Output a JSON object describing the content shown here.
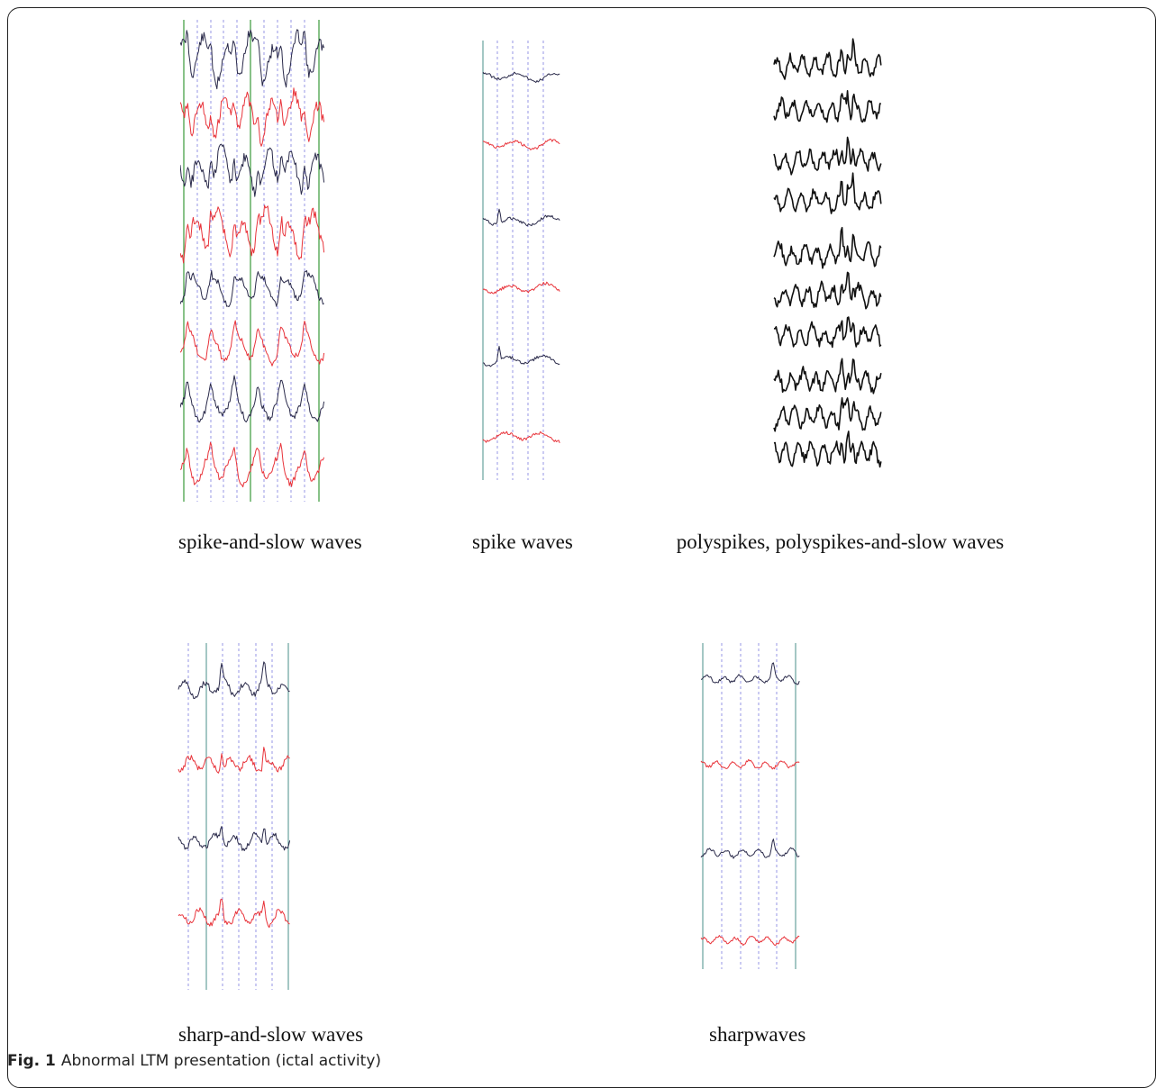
{
  "figure": {
    "caption_label": "Fig. 1",
    "caption_text": "Abnormal LTM presentation (ictal activity)"
  },
  "panels": [
    {
      "id": "spike-and-slow",
      "label": "spike-and-slow  waves"
    },
    {
      "id": "spike",
      "label": "spike  waves"
    },
    {
      "id": "polyspikes",
      "label": "polyspikes,  polyspikes-and-slow waves"
    },
    {
      "id": "sharp-and-slow",
      "label": "sharp-and-slow waves"
    },
    {
      "id": "sharp",
      "label": "sharpwaves"
    }
  ],
  "colors": {
    "trace_dark": "#2a2a4a",
    "trace_red": "#e8333a",
    "trace_black": "#111111",
    "grid_solid_green": "#3a9a3a",
    "grid_solid_teal": "#4a8f8a",
    "grid_dashed": "#7d7de0"
  }
}
